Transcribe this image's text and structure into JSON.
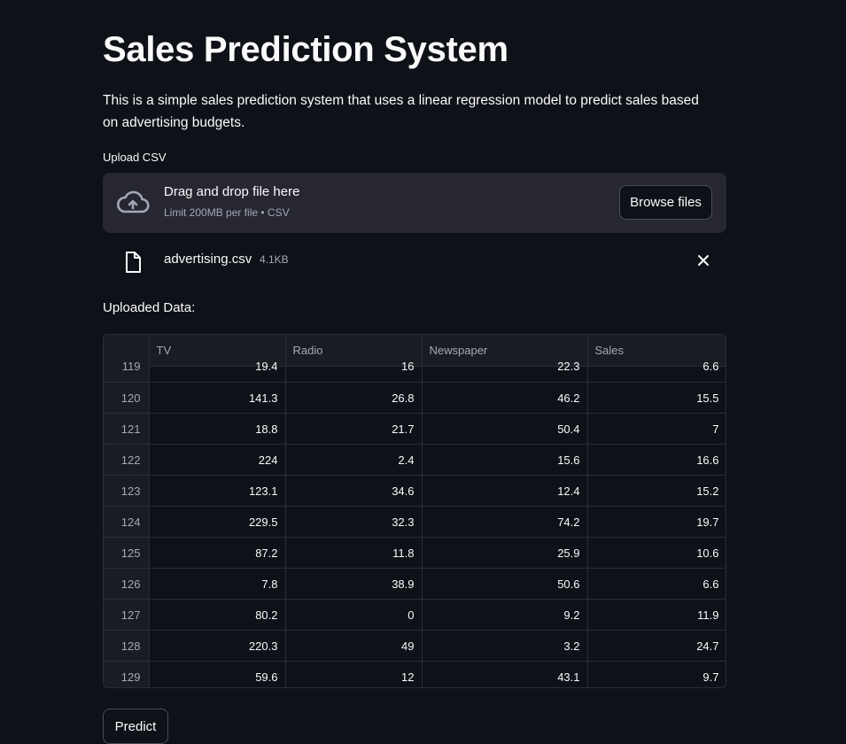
{
  "page": {
    "title": "Sales Prediction System",
    "description": "This is a simple sales prediction system that uses a linear regression model to predict sales based on advertising budgets."
  },
  "uploader": {
    "label": "Upload CSV",
    "drop_title": "Drag and drop file here",
    "drop_subtitle": "Limit 200MB per file • CSV",
    "browse_label": "Browse files",
    "icon": "cloud-upload-icon"
  },
  "uploaded_file": {
    "name": "advertising.csv",
    "size": "4.1KB",
    "icon": "file-icon",
    "remove_icon": "close-icon"
  },
  "data_section": {
    "label": "Uploaded Data:"
  },
  "table": {
    "columns": [
      "",
      "TV",
      "Radio",
      "Newspaper",
      "Sales"
    ],
    "rows": [
      [
        "119",
        "19.4",
        "16",
        "22.3",
        "6.6"
      ],
      [
        "120",
        "141.3",
        "26.8",
        "46.2",
        "15.5"
      ],
      [
        "121",
        "18.8",
        "21.7",
        "50.4",
        "7"
      ],
      [
        "122",
        "224",
        "2.4",
        "15.6",
        "16.6"
      ],
      [
        "123",
        "123.1",
        "34.6",
        "12.4",
        "15.2"
      ],
      [
        "124",
        "229.5",
        "32.3",
        "74.2",
        "19.7"
      ],
      [
        "125",
        "87.2",
        "11.8",
        "25.9",
        "10.6"
      ],
      [
        "126",
        "7.8",
        "38.9",
        "50.6",
        "6.6"
      ],
      [
        "127",
        "80.2",
        "0",
        "9.2",
        "11.9"
      ],
      [
        "128",
        "220.3",
        "49",
        "3.2",
        "24.7"
      ],
      [
        "129",
        "59.6",
        "12",
        "43.1",
        "9.7"
      ]
    ]
  },
  "actions": {
    "predict_label": "Predict"
  },
  "colors": {
    "background": "#0e1117",
    "dropzone": "#262730",
    "text": "#fafafa",
    "muted": "#a3a8b8",
    "border": "#2b2e36"
  }
}
